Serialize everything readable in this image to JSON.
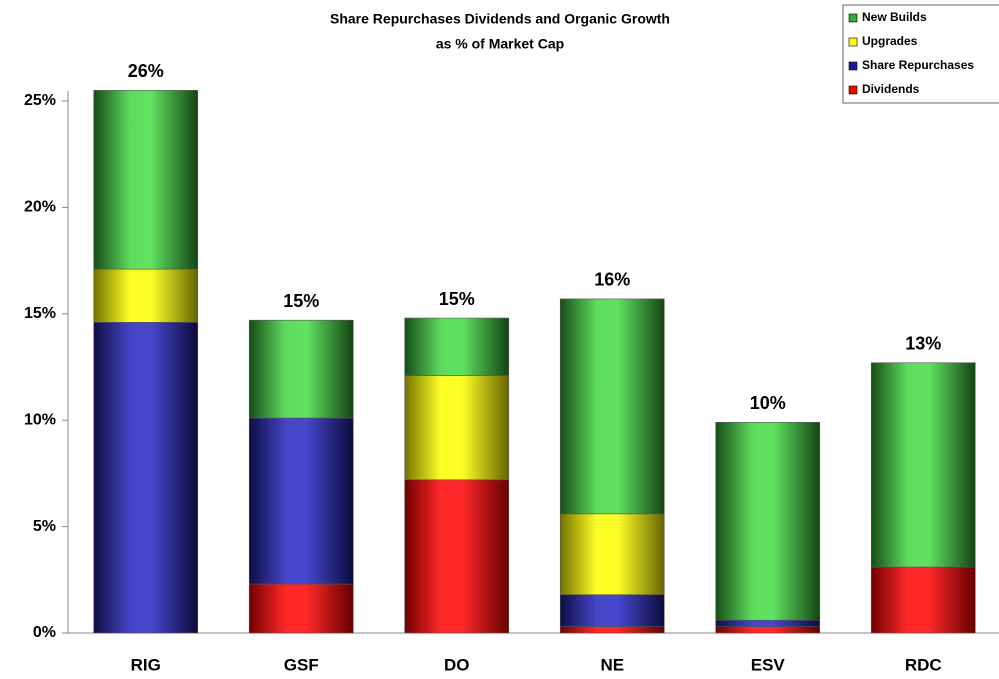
{
  "chart_data": {
    "type": "stacked_bar",
    "title": "Share Repurchases Dividends and Organic Growth",
    "subtitle": "as % of Market Cap",
    "categories": [
      "RIG",
      "GSF",
      "DO",
      "NE",
      "ESV",
      "RDC"
    ],
    "series": [
      {
        "name": "Dividends",
        "color": "#ff0000",
        "values": [
          0,
          2.3,
          7.2,
          0.3,
          0.3,
          3.1
        ]
      },
      {
        "name": "Share Repurchases",
        "color": "#1c1c96",
        "values": [
          14.6,
          7.8,
          0,
          1.5,
          0.3,
          0
        ]
      },
      {
        "name": "Upgrades",
        "color": "#ffff00",
        "values": [
          2.5,
          0,
          4.9,
          3.8,
          0,
          0
        ]
      },
      {
        "name": "New Builds",
        "color": "#33aa33",
        "values": [
          8.4,
          4.6,
          2.7,
          10.1,
          9.3,
          9.6
        ]
      }
    ],
    "totals": {
      "values": [
        26,
        15,
        15,
        16,
        10,
        13
      ],
      "value_labels": [
        "26%",
        "15%",
        "15%",
        "16%",
        "10%",
        "13%"
      ]
    },
    "ylim": [
      0,
      25
    ],
    "yticks": [
      {
        "value": 0,
        "label": "0%"
      },
      {
        "value": 5,
        "label": "5%"
      },
      {
        "value": 10,
        "label": "10%"
      },
      {
        "value": 15,
        "label": "15%"
      },
      {
        "value": 20,
        "label": "20%"
      },
      {
        "value": 25,
        "label": "25%"
      }
    ],
    "legend": "top-right"
  }
}
